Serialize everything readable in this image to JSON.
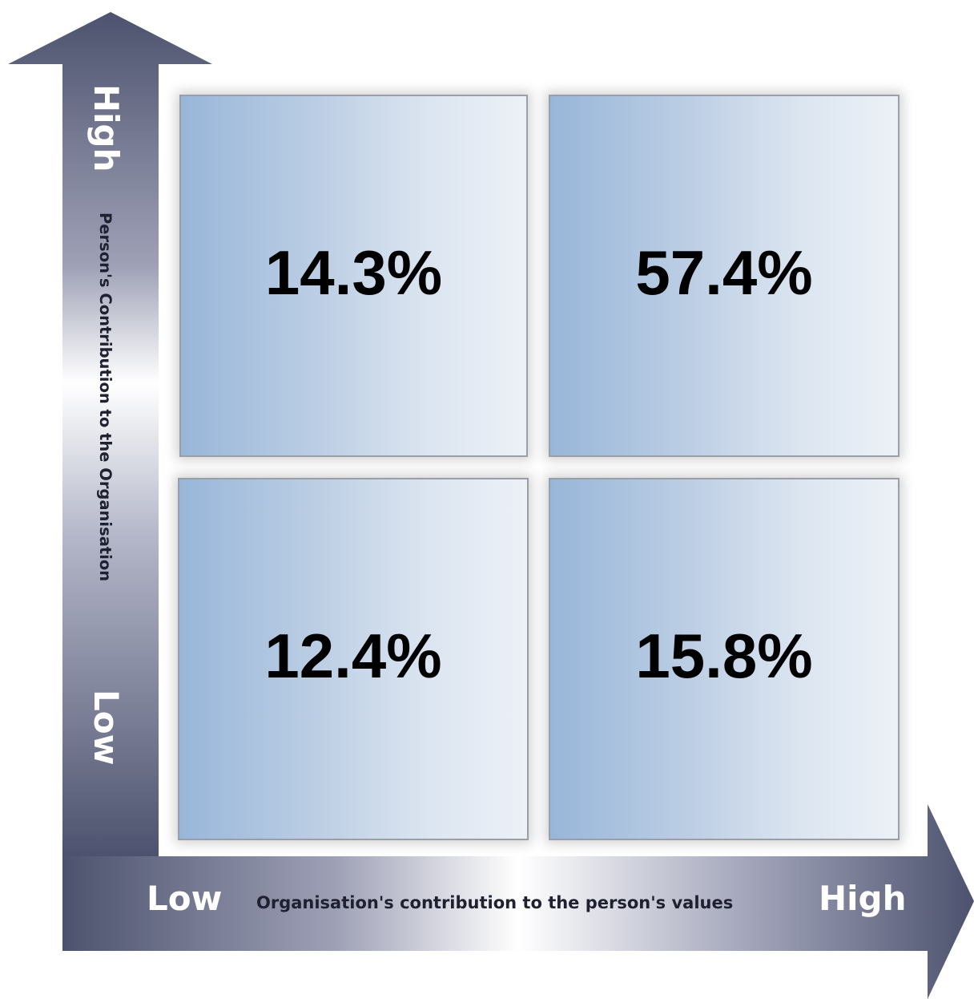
{
  "y_axis": {
    "high_label": "High",
    "title": "Person's Contribution to the Organisation",
    "low_label": "Low"
  },
  "x_axis": {
    "low_label": "Low",
    "title": "Organisation's contribution to the person's values",
    "high_label": "High"
  },
  "quadrants": {
    "top_left": "14.3%",
    "top_right": "57.4%",
    "bottom_left": "12.4%",
    "bottom_right": "15.8%"
  },
  "colors": {
    "arrow_dark": "#505571",
    "arrow_light": "#ffffff",
    "quadrant_left": "#98b6d9",
    "quadrant_right": "#edf1f7"
  }
}
